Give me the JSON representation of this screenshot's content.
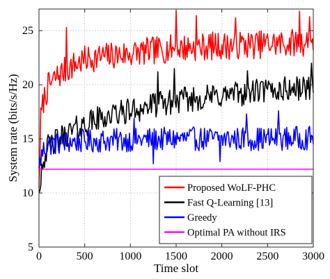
{
  "chart_data": {
    "type": "line",
    "xlabel": "Time slot",
    "ylabel": "System rate (bits/s/Hz)",
    "xlim": [
      0,
      3000
    ],
    "ylim": [
      5,
      27
    ],
    "xticks": [
      0,
      500,
      1000,
      1500,
      2000,
      2500,
      3000
    ],
    "yticks": [
      5,
      10,
      15,
      20,
      25
    ],
    "xtick_labels": [
      "0",
      "500",
      "1000",
      "1500",
      "2000",
      "2500",
      "3000"
    ],
    "ytick_labels": [
      "5",
      "10",
      "15",
      "20",
      "25"
    ],
    "grid": true,
    "legend_position": "bottom-right",
    "series": [
      {
        "name": "Proposed WoLF-PHC",
        "color": "#ff0000",
        "x": [
          0,
          20,
          50,
          100,
          150,
          200,
          300,
          400,
          500,
          600,
          700,
          800,
          900,
          1000,
          1100,
          1200,
          1300,
          1400,
          1500,
          1600,
          1700,
          1800,
          1900,
          2000,
          2100,
          2200,
          2300,
          2400,
          2500,
          2600,
          2700,
          2800,
          2900,
          3000
        ],
        "values": [
          10.5,
          16.8,
          18.6,
          19.8,
          20.3,
          20.8,
          21.4,
          21.9,
          22.3,
          22.5,
          22.6,
          22.7,
          22.8,
          22.9,
          23.0,
          23.1,
          23.2,
          23.3,
          23.4,
          23.4,
          23.5,
          23.5,
          23.6,
          23.6,
          23.6,
          23.7,
          23.7,
          23.7,
          23.8,
          23.8,
          23.8,
          23.9,
          23.9,
          24.0
        ],
        "amplitude": 1.3,
        "spikes": [
          [
            300,
            25.3
          ],
          [
            1500,
            26.8
          ],
          [
            1720,
            26.4
          ],
          [
            2150,
            26.2
          ],
          [
            2850,
            26.8
          ],
          [
            2960,
            26.3
          ]
        ]
      },
      {
        "name": "Fast Q-Learning [13]",
        "color": "#000000",
        "x": [
          0,
          30,
          60,
          100,
          200,
          300,
          400,
          500,
          600,
          700,
          800,
          900,
          1000,
          1100,
          1200,
          1300,
          1400,
          1500,
          1600,
          1700,
          1800,
          1900,
          2000,
          2100,
          2200,
          2300,
          2400,
          2500,
          2600,
          2700,
          2800,
          2900,
          3000
        ],
        "values": [
          10.0,
          12.5,
          13.5,
          14.2,
          14.9,
          15.4,
          15.9,
          16.3,
          16.7,
          17.0,
          17.2,
          17.4,
          17.6,
          17.8,
          18.0,
          18.2,
          18.3,
          18.5,
          18.6,
          18.7,
          18.8,
          18.9,
          19.0,
          19.1,
          19.2,
          19.3,
          19.4,
          19.4,
          19.5,
          19.6,
          19.6,
          19.7,
          19.8
        ],
        "amplitude": 1.2,
        "spikes": [
          [
            1300,
            21.2
          ],
          [
            1480,
            21.5
          ],
          [
            2280,
            21.3
          ],
          [
            2980,
            22.0
          ]
        ]
      },
      {
        "name": "Greedy",
        "color": "#0000ff",
        "x": [
          0,
          20,
          50,
          100,
          200,
          300,
          500,
          1000,
          1500,
          2000,
          2500,
          3000
        ],
        "values": [
          12.3,
          13.2,
          14.0,
          14.5,
          14.6,
          14.7,
          14.8,
          14.9,
          15.0,
          15.0,
          15.0,
          15.1
        ],
        "amplitude": 1.1,
        "spikes": [
          [
            1040,
            16.9
          ],
          [
            2270,
            17.3
          ],
          [
            2620,
            17.6
          ],
          [
            1250,
            12.7
          ],
          [
            1980,
            12.9
          ]
        ]
      },
      {
        "name": "Optimal PA without IRS",
        "color": "#ff00ff",
        "x": [
          0,
          3000
        ],
        "values": [
          12.2,
          12.2
        ],
        "amplitude": 0,
        "spikes": []
      }
    ]
  }
}
